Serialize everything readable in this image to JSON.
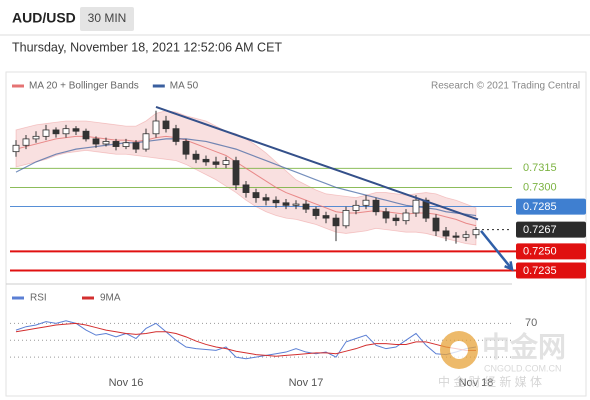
{
  "header": {
    "symbol": "AUD/USD",
    "interval": "30 MIN",
    "timestamp": "Thursday, November 18, 2021 12:52:06 AM CET"
  },
  "watermark": {
    "logo": "中金网",
    "domain": "CNGOLD.COM.CN",
    "tagline": "中 金 财 经 新 媒 体"
  },
  "chart_data": [
    {
      "type": "candlestick",
      "credit": "Research © 2021 Trading Central",
      "up_color": "#ffffff",
      "down_color": "#333333",
      "open": [
        0.7328,
        0.7333,
        0.7338,
        0.734,
        0.7345,
        0.7342,
        0.7346,
        0.7344,
        0.7338,
        0.7334,
        0.7336,
        0.7332,
        0.7335,
        0.733,
        0.7342,
        0.7352,
        0.7346,
        0.7336,
        0.7326,
        0.7322,
        0.732,
        0.7318,
        0.7321,
        0.7302,
        0.7296,
        0.7292,
        0.729,
        0.7288,
        0.7286,
        0.7287,
        0.7283,
        0.7278,
        0.7276,
        0.727,
        0.7282,
        0.7286,
        0.729,
        0.7281,
        0.7276,
        0.7274,
        0.728,
        0.729,
        0.7276,
        0.7266,
        0.7262,
        0.7261,
        0.7263
      ],
      "high": [
        0.7337,
        0.7341,
        0.7344,
        0.7349,
        0.7347,
        0.7349,
        0.7348,
        0.7346,
        0.734,
        0.7339,
        0.7338,
        0.7338,
        0.7337,
        0.7346,
        0.736,
        0.7356,
        0.7349,
        0.7338,
        0.7329,
        0.7325,
        0.7324,
        0.7324,
        0.7324,
        0.7305,
        0.7299,
        0.7295,
        0.7293,
        0.7291,
        0.729,
        0.729,
        0.7285,
        0.7281,
        0.7279,
        0.7285,
        0.729,
        0.7294,
        0.7292,
        0.7284,
        0.7279,
        0.7283,
        0.7294,
        0.7292,
        0.7279,
        0.7269,
        0.7265,
        0.7266,
        0.7269
      ],
      "low": [
        0.7324,
        0.733,
        0.7335,
        0.7337,
        0.7339,
        0.7339,
        0.7341,
        0.7336,
        0.7331,
        0.7332,
        0.7329,
        0.733,
        0.7327,
        0.7328,
        0.7339,
        0.7343,
        0.7333,
        0.7322,
        0.7319,
        0.7317,
        0.7315,
        0.7315,
        0.7298,
        0.7292,
        0.7288,
        0.7286,
        0.7284,
        0.7283,
        0.7283,
        0.728,
        0.7275,
        0.7272,
        0.7258,
        0.7268,
        0.7279,
        0.7283,
        0.7278,
        0.7272,
        0.727,
        0.7271,
        0.7277,
        0.7273,
        0.7262,
        0.7258,
        0.7256,
        0.7258,
        0.726
      ],
      "close": [
        0.7333,
        0.7338,
        0.734,
        0.7345,
        0.7342,
        0.7346,
        0.7344,
        0.7338,
        0.7334,
        0.7336,
        0.7332,
        0.7335,
        0.733,
        0.7342,
        0.7352,
        0.7346,
        0.7336,
        0.7326,
        0.7322,
        0.732,
        0.7318,
        0.7321,
        0.7302,
        0.7296,
        0.7292,
        0.729,
        0.7288,
        0.7286,
        0.7287,
        0.7283,
        0.7278,
        0.7276,
        0.727,
        0.7282,
        0.7286,
        0.729,
        0.7281,
        0.7276,
        0.7274,
        0.728,
        0.729,
        0.7276,
        0.7266,
        0.7262,
        0.7261,
        0.7263,
        0.7267
      ],
      "series": [
        {
          "name": "MA 20 + Bollinger Bands",
          "color": "#e57373",
          "values": [
            0.733,
            0.7332,
            0.7334,
            0.7336,
            0.7338,
            0.7339,
            0.734,
            0.734,
            0.7339,
            0.7338,
            0.7337,
            0.7337,
            0.7336,
            0.7337,
            0.7339,
            0.734,
            0.7339,
            0.7337,
            0.7334,
            0.7331,
            0.7328,
            0.7325,
            0.732,
            0.7315,
            0.731,
            0.7305,
            0.73,
            0.7296,
            0.7293,
            0.729,
            0.7287,
            0.7284,
            0.7281,
            0.728,
            0.728,
            0.7281,
            0.7282,
            0.7281,
            0.728,
            0.7279,
            0.728,
            0.728,
            0.7279,
            0.7277,
            0.7275,
            0.7272,
            0.727
          ],
          "upper": [
            0.7345,
            0.7347,
            0.7349,
            0.735,
            0.7351,
            0.7352,
            0.7352,
            0.7352,
            0.7351,
            0.735,
            0.7349,
            0.7348,
            0.7348,
            0.7352,
            0.7358,
            0.736,
            0.7359,
            0.7356,
            0.7354,
            0.7352,
            0.7348,
            0.7344,
            0.7342,
            0.7338,
            0.7333,
            0.7327,
            0.732,
            0.7313,
            0.7306,
            0.7302,
            0.7298,
            0.7295,
            0.7294,
            0.7293,
            0.7292,
            0.7294,
            0.7296,
            0.7296,
            0.7295,
            0.7294,
            0.7295,
            0.7296,
            0.7295,
            0.7292,
            0.729,
            0.7287,
            0.7284
          ],
          "lower": [
            0.7316,
            0.7318,
            0.732,
            0.7322,
            0.7325,
            0.7327,
            0.7328,
            0.7329,
            0.7328,
            0.7327,
            0.7326,
            0.7326,
            0.7325,
            0.7324,
            0.7323,
            0.7322,
            0.7321,
            0.7318,
            0.7314,
            0.731,
            0.7306,
            0.7301,
            0.7296,
            0.729,
            0.7285,
            0.7281,
            0.7278,
            0.7276,
            0.7275,
            0.7273,
            0.7271,
            0.7268,
            0.7265,
            0.7264,
            0.7265,
            0.7266,
            0.7268,
            0.7267,
            0.7266,
            0.7265,
            0.7265,
            0.7264,
            0.7262,
            0.726,
            0.7258,
            0.7256,
            0.7255
          ]
        },
        {
          "name": "MA 50",
          "color": "#3a5f9f",
          "values": [
            0.7312,
            0.7316,
            0.732,
            0.7323,
            0.7326,
            0.7328,
            0.733,
            0.7331,
            0.7332,
            0.7333,
            0.7334,
            0.7335,
            0.7335,
            0.7336,
            0.7337,
            0.7338,
            0.7338,
            0.7338,
            0.7337,
            0.7336,
            0.7334,
            0.7332,
            0.733,
            0.7327,
            0.7324,
            0.7321,
            0.7318,
            0.7315,
            0.7312,
            0.7309,
            0.7306,
            0.7303,
            0.73,
            0.7298,
            0.7296,
            0.7294,
            0.7292,
            0.729,
            0.7288,
            0.7286,
            0.7285,
            0.7284,
            0.7283,
            0.7281,
            0.728,
            0.7279,
            0.7278
          ]
        }
      ],
      "ylim": [
        0.7226,
        0.737
      ],
      "levels": [
        {
          "value": 0.7315,
          "color": "#7cb342",
          "box": false,
          "dashed": false
        },
        {
          "value": 0.73,
          "label": "0.7300",
          "color": "#7cb342",
          "box": false,
          "dashed": false
        },
        {
          "value": 0.7285,
          "color": "#3f7fd0",
          "box": true,
          "dashed": false
        },
        {
          "value": 0.7267,
          "color": "#2b2b2b",
          "box": true,
          "dashed": true
        },
        {
          "value": 0.725,
          "label": "0.7250",
          "color": "#e01010",
          "box": true,
          "dashed": false
        },
        {
          "value": 0.7235,
          "color": "#e01010",
          "box": true,
          "dashed": false
        }
      ],
      "trendline": {
        "x": [
          14,
          46.2
        ],
        "y": [
          0.7363,
          0.7275
        ],
        "color": "#34508a"
      },
      "arrow": {
        "x": [
          46.5,
          49.6
        ],
        "y": [
          0.7266,
          0.7236
        ],
        "color": "#2f5fa8"
      }
    },
    {
      "type": "line",
      "categories": [
        null,
        null,
        null,
        null,
        null,
        null,
        null,
        null,
        null,
        null,
        null,
        "Nov 16",
        null,
        null,
        null,
        null,
        null,
        null,
        null,
        null,
        null,
        null,
        null,
        null,
        null,
        null,
        null,
        null,
        null,
        "Nov 17",
        null,
        null,
        null,
        null,
        null,
        null,
        null,
        null,
        null,
        null,
        null,
        null,
        null,
        null,
        null,
        null,
        "Nov 18"
      ],
      "series": [
        {
          "name": "RSI",
          "color": "#5b7fd4",
          "values": [
            62,
            66,
            68,
            72,
            70,
            73,
            70,
            62,
            56,
            58,
            54,
            58,
            52,
            64,
            70,
            60,
            50,
            42,
            40,
            39,
            38,
            42,
            30,
            28,
            30,
            32,
            34,
            36,
            40,
            36,
            34,
            36,
            30,
            48,
            52,
            56,
            44,
            40,
            42,
            50,
            58,
            44,
            34,
            33,
            36,
            40,
            42
          ]
        },
        {
          "name": "9MA",
          "color": "#d32f2f",
          "values": [
            60,
            62,
            64,
            66,
            68,
            69,
            70,
            68,
            65,
            62,
            60,
            58,
            57,
            58,
            60,
            60,
            58,
            54,
            49,
            45,
            42,
            40,
            37,
            35,
            33,
            32,
            31,
            32,
            33,
            34,
            35,
            35,
            34,
            37,
            40,
            44,
            46,
            46,
            45,
            45,
            48,
            48,
            45,
            42,
            40,
            38,
            38
          ]
        }
      ],
      "ylim": [
        10,
        100
      ],
      "yticks": [
        70
      ],
      "guides": [
        50,
        30
      ]
    }
  ]
}
